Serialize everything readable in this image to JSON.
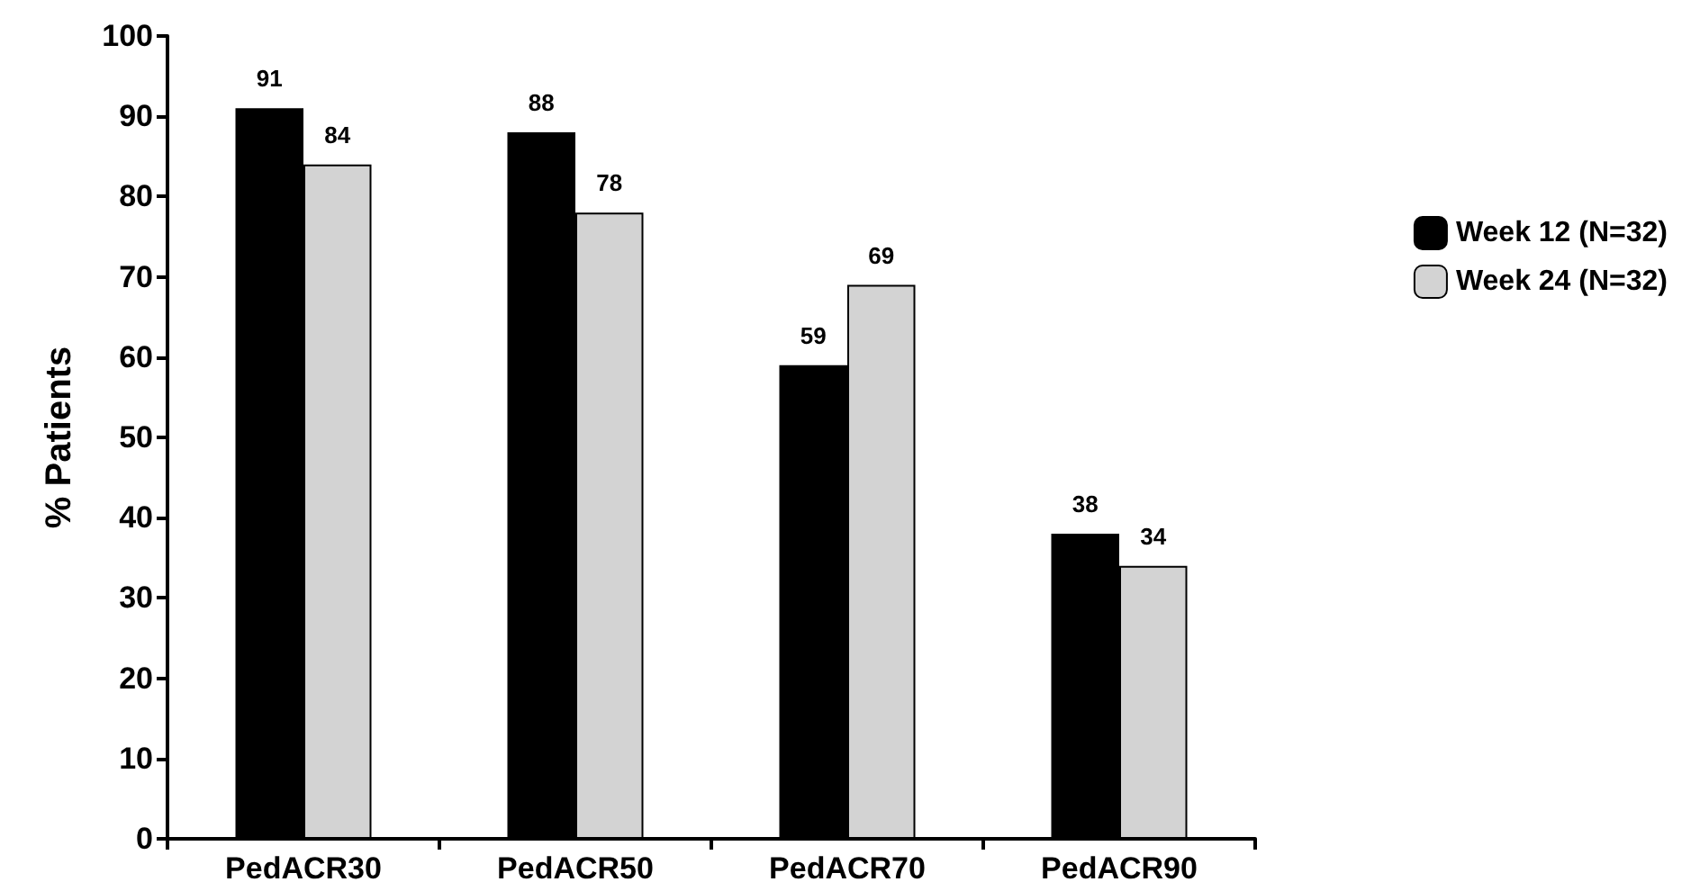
{
  "chart_data": {
    "type": "bar",
    "ylabel": "% Patients",
    "categories": [
      "PedACR30",
      "PedACR50",
      "PedACR70",
      "PedACR90"
    ],
    "series": [
      {
        "name": "Week 12 (N=32)",
        "color": "#000000",
        "values": [
          91,
          88,
          59,
          38
        ]
      },
      {
        "name": "Week 24 (N=32)",
        "color": "#d3d3d3",
        "values": [
          84,
          78,
          69,
          34
        ]
      }
    ],
    "ylim": [
      0,
      100
    ],
    "yticks": [
      0,
      10,
      20,
      30,
      40,
      50,
      60,
      70,
      80,
      90,
      100
    ],
    "grid": false,
    "legend": "right",
    "data_labels": true
  }
}
